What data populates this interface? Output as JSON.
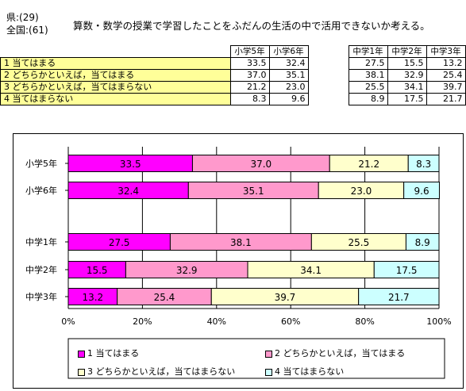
{
  "header": {
    "pref_code": "県:(29)",
    "national_code": "全国:(61)",
    "title": "算数・数学の授業で学習したことをふだんの生活の中で活用できないか考える。"
  },
  "table": {
    "columns": [
      "小学5年",
      "小学6年",
      "中学1年",
      "中学2年",
      "中学3年"
    ],
    "rows": [
      {
        "label": "1  当てはまる",
        "values": [
          "33.5",
          "32.4",
          "27.5",
          "15.5",
          "13.2"
        ]
      },
      {
        "label": "2  どちらかといえば，当てはまる",
        "values": [
          "37.0",
          "35.1",
          "38.1",
          "32.9",
          "25.4"
        ]
      },
      {
        "label": "3  どちらかといえば，当てはまらない",
        "values": [
          "21.2",
          "23.0",
          "25.5",
          "34.1",
          "39.7"
        ]
      },
      {
        "label": "4  当てはまらない",
        "values": [
          "8.3",
          "9.6",
          "8.9",
          "17.5",
          "21.7"
        ]
      }
    ]
  },
  "colors": {
    "s1": "#ff00ff",
    "s2": "#ff99cc",
    "s3": "#ffffcc",
    "s4": "#ccffff"
  },
  "chart_data": {
    "type": "bar",
    "orientation": "horizontal",
    "stacked": true,
    "categories": [
      "小学5年",
      "小学6年",
      "中学1年",
      "中学2年",
      "中学3年"
    ],
    "series": [
      {
        "name": "1  当てはまる",
        "values": [
          33.5,
          32.4,
          27.5,
          15.5,
          13.2
        ]
      },
      {
        "name": "2  どちらかといえば，当てはまる",
        "values": [
          37.0,
          35.1,
          38.1,
          32.9,
          25.4
        ]
      },
      {
        "name": "3  どちらかといえば，当てはまらない",
        "values": [
          21.2,
          23.0,
          25.5,
          34.1,
          39.7
        ]
      },
      {
        "name": "4  当てはまらない",
        "values": [
          8.3,
          9.6,
          8.9,
          17.5,
          21.7
        ]
      }
    ],
    "xlim": [
      0,
      100
    ],
    "xticks": [
      "0%",
      "20%",
      "40%",
      "60%",
      "80%",
      "100%"
    ],
    "grid": true,
    "legend": "bottom"
  }
}
